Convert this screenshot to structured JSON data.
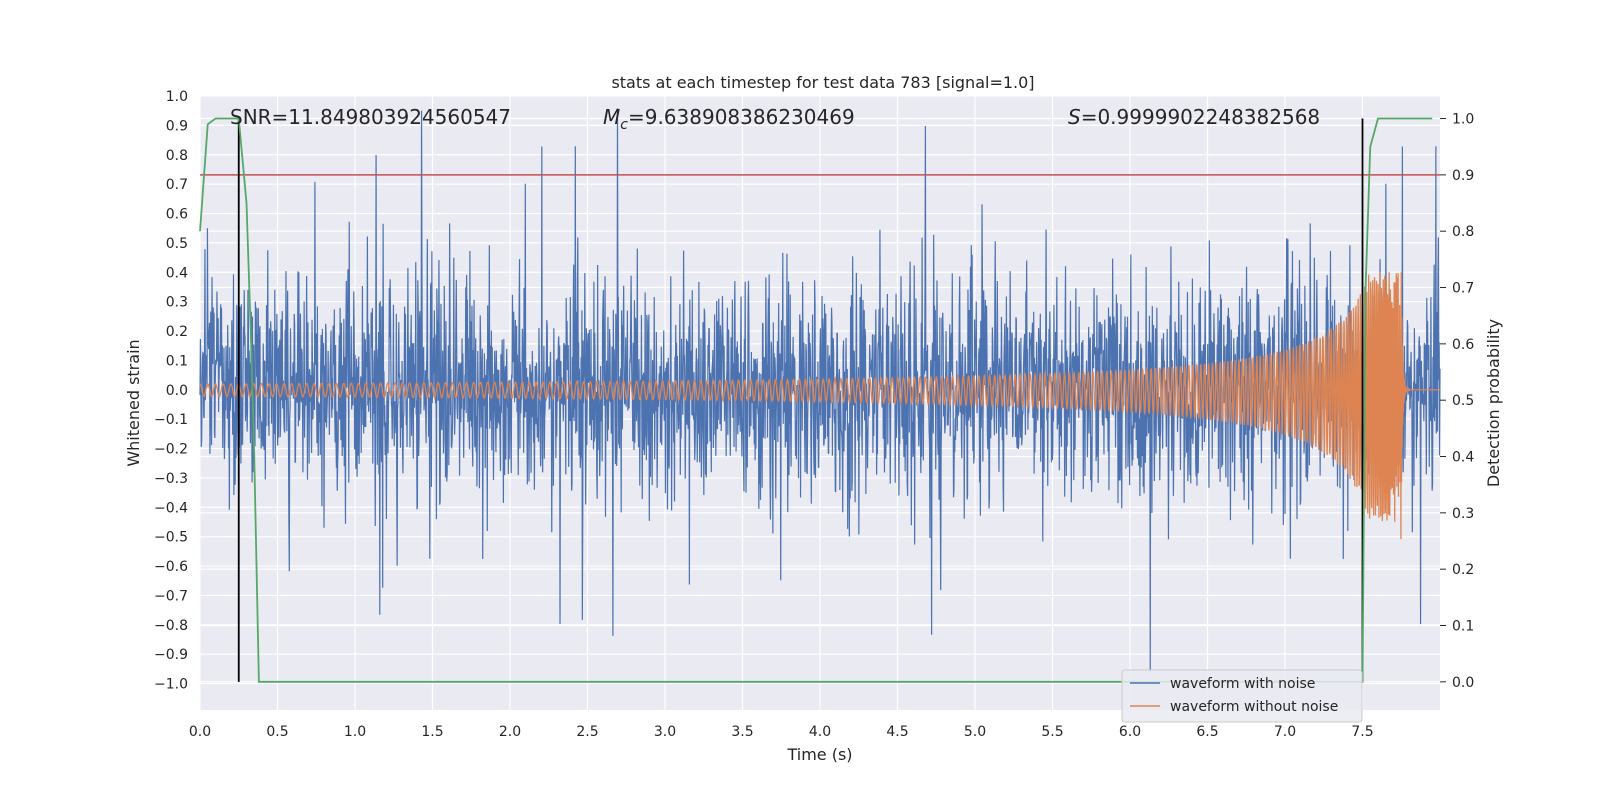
{
  "chart_data": {
    "type": "line",
    "title": "stats at each timestep for test data 783 [signal=1.0]",
    "xlabel": "Time (s)",
    "ylabel": "Whitened strain",
    "y2label": "Detection probability",
    "xlim": [
      0.0,
      8.0
    ],
    "ylim": [
      -1.09,
      1.0
    ],
    "y2lim": [
      -0.05,
      1.04
    ],
    "x_ticks": [
      "0.0",
      "0.5",
      "1.0",
      "1.5",
      "2.0",
      "2.5",
      "3.0",
      "3.5",
      "4.0",
      "4.5",
      "5.0",
      "5.5",
      "6.0",
      "6.5",
      "7.0",
      "7.5"
    ],
    "y_ticks": [
      "1.0",
      "0.9",
      "0.8",
      "0.7",
      "0.6",
      "0.5",
      "0.4",
      "0.3",
      "0.2",
      "0.1",
      "0.0",
      "−0.1",
      "−0.2",
      "−0.3",
      "−0.4",
      "−0.5",
      "−0.6",
      "−0.7",
      "−0.8",
      "−0.9",
      "−1.0"
    ],
    "y2_ticks": [
      "1.0",
      "0.9",
      "0.8",
      "0.7",
      "0.6",
      "0.5",
      "0.4",
      "0.3",
      "0.2",
      "0.1",
      "0.0"
    ],
    "annotations": {
      "snr": "SNR=11.849803924560547",
      "mc_symbol": "M",
      "mc_sub": "c",
      "mc_value": "=9.638908386230469",
      "s_symbol": "S",
      "s_value": "=0.9999902248382568"
    },
    "threshold": 0.9,
    "vlines": [
      0.25,
      7.5
    ],
    "noise_amplitude_typical": 0.4,
    "noise_amplitude_max": 1.0,
    "chirp": {
      "start": 0.0,
      "merger": 7.75,
      "end": 8.0,
      "amp_start": 0.02,
      "amp_peak": 0.4,
      "amp_min_peak": -0.45,
      "freq_start_hz": 20
    },
    "probability": {
      "x": [
        0.0,
        0.05,
        0.1,
        0.15,
        0.2,
        0.25,
        0.3,
        0.33,
        0.35,
        0.38,
        7.45,
        7.5,
        7.52,
        7.55,
        7.6,
        7.95
      ],
      "y": [
        0.8,
        0.99,
        1.0,
        1.0,
        1.0,
        1.0,
        0.85,
        0.6,
        0.4,
        0.0,
        0.0,
        0.0,
        0.7,
        0.95,
        1.0,
        1.0
      ]
    },
    "legend": {
      "position": "lower-right",
      "entries": [
        "waveform with noise",
        "waveform without noise"
      ]
    },
    "colors": {
      "noise": "#4c72b0",
      "clean": "#dd8452",
      "probability": "#55a868",
      "threshold": "#c44e52",
      "vline": "#000000",
      "background": "#eaeaf2",
      "grid": "#ffffff"
    }
  }
}
